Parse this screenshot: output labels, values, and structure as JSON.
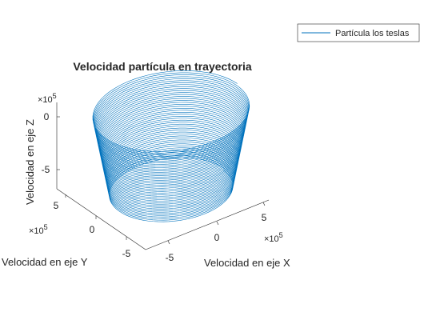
{
  "chart_data": {
    "type": "line",
    "projection": "3d",
    "title": "Velocidad partícula en trayectoria",
    "xlabel": "Velocidad en eje X",
    "ylabel": "Velocidad en eje Y",
    "zlabel": "Velocidad en eje Z",
    "x_exponent": "×10",
    "y_exponent": "×10",
    "z_exponent": "×10",
    "exponent_power": "5",
    "x_ticks": [
      "-5",
      "0",
      "5"
    ],
    "y_ticks": [
      "5",
      "0",
      "-5"
    ],
    "z_ticks": [
      "0",
      "-5"
    ],
    "xlim": [
      -800000,
      800000
    ],
    "ylim": [
      -800000,
      800000
    ],
    "zlim": [
      -1000000,
      0
    ],
    "series": [
      {
        "name": "Partícula los teslas",
        "color": "#0072BD",
        "shape": "helix",
        "turns": 45,
        "z_start": -850000,
        "z_end": -20000,
        "radius_at_z_start": 700000,
        "radius_at_z_end": 550000
      }
    ],
    "legend": "top-right",
    "grid": false
  }
}
